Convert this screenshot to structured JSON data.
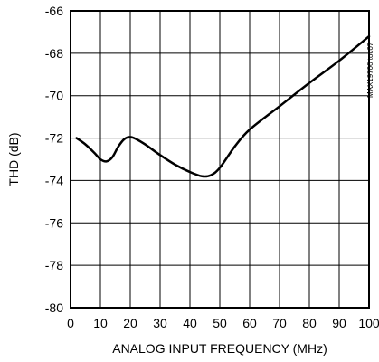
{
  "chart_data": {
    "type": "line",
    "title": "",
    "xlabel": "ANALOG INPUT FREQUENCY (MHz)",
    "ylabel": "THD (dB)",
    "xlim": [
      0,
      100
    ],
    "ylim": [
      -80,
      -66
    ],
    "xticks": [
      0,
      10,
      20,
      30,
      40,
      50,
      60,
      70,
      80,
      90,
      100
    ],
    "yticks": [
      -66,
      -68,
      -70,
      -72,
      -74,
      -76,
      -78,
      -80
    ],
    "xtick_labels": [
      "0",
      "10",
      "20",
      "30",
      "40",
      "50",
      "60",
      "70",
      "80",
      "90",
      "100"
    ],
    "ytick_labels": [
      "-66",
      "-68",
      "-70",
      "-72",
      "-74",
      "-76",
      "-78",
      "-80"
    ],
    "grid": true,
    "side_label": "MAX19700 toc07",
    "series": [
      {
        "x": [
          2,
          5,
          8,
          10,
          12,
          14,
          16,
          18,
          20,
          22,
          25,
          30,
          35,
          40,
          44,
          47,
          50,
          55,
          60,
          70,
          80,
          90,
          100
        ],
        "y": [
          -72.0,
          -72.3,
          -72.7,
          -73.0,
          -73.1,
          -72.9,
          -72.4,
          -72.05,
          -71.95,
          -72.05,
          -72.3,
          -72.8,
          -73.25,
          -73.6,
          -73.8,
          -73.75,
          -73.4,
          -72.4,
          -71.6,
          -70.5,
          -69.4,
          -68.35,
          -67.2
        ],
        "color": "#000000"
      }
    ]
  }
}
